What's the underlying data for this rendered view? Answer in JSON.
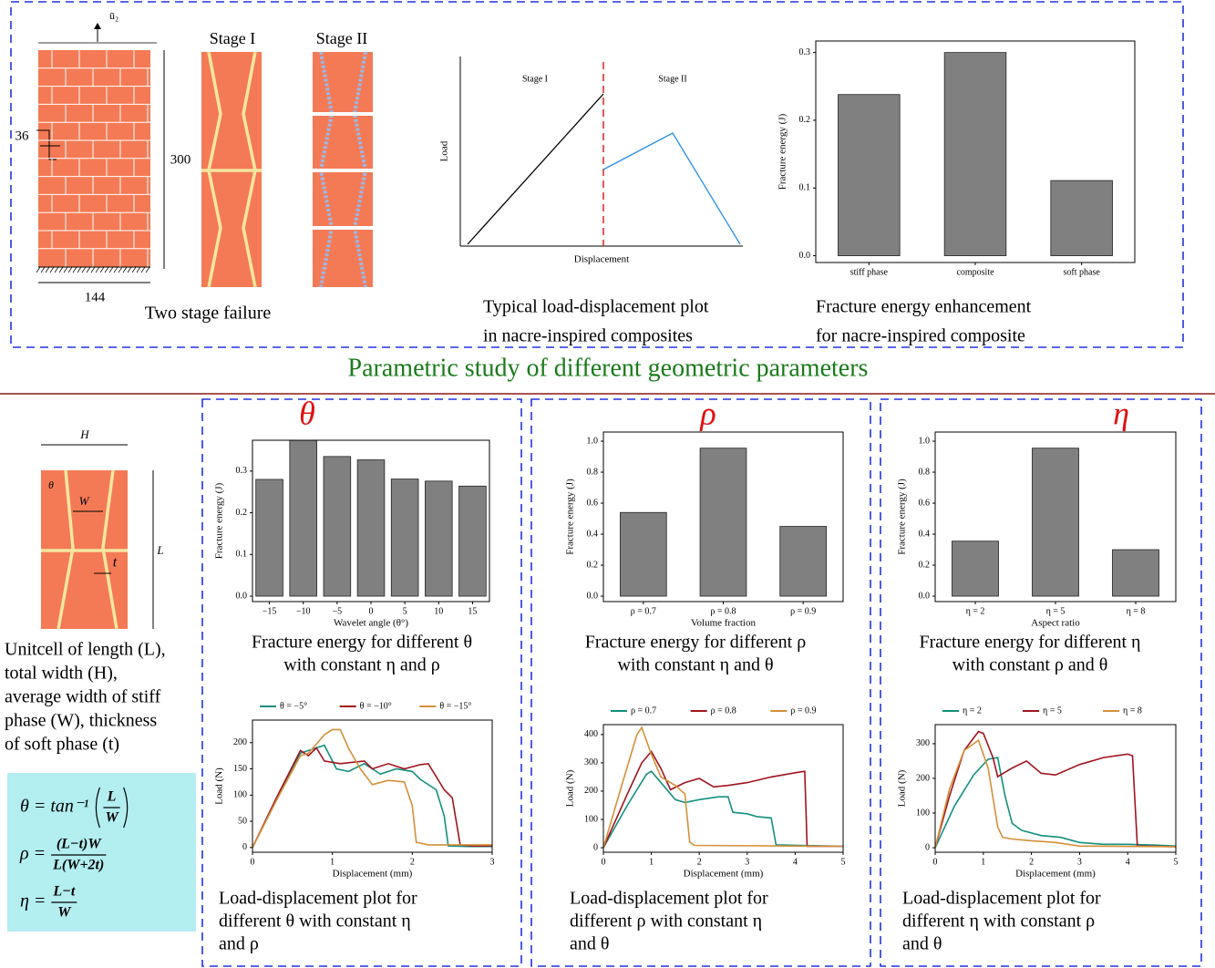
{
  "header": {
    "title": "Parametric study of different geometric parameters"
  },
  "failure": {
    "load_label": "ū₂",
    "stages": [
      "Stage I",
      "Stage II"
    ],
    "dims": {
      "brick": "36",
      "height": "300",
      "width": "144"
    },
    "caption": "Two stage failure"
  },
  "schematic": {
    "stage_labels": [
      "Stage I",
      "Stage II"
    ],
    "ylabel": "Load",
    "xlabel": "Displacement",
    "caption": [
      "Typical load-displacement plot",
      "in nacre-inspired composites"
    ]
  },
  "unitcell": {
    "labels": {
      "H": "H",
      "theta": "θ",
      "W": "W",
      "L": "L",
      "t": "t"
    },
    "caption": [
      "Unitcell of length (L),",
      "total width (H),",
      "average width of stiff",
      "phase (W), thickness",
      "of soft phase (t)"
    ],
    "formulas": [
      {
        "lhs": "θ = tan⁻¹",
        "num": "L",
        "den": "W"
      },
      {
        "lhs": "ρ =",
        "num": "(L−t)W",
        "den": "L(W+2t)"
      },
      {
        "lhs": "η =",
        "num": "L−t",
        "den": "W"
      }
    ]
  },
  "chart_data": [
    {
      "type": "bar",
      "categories": [
        "stiff phase",
        "composite",
        "soft phase"
      ],
      "values": [
        0.238,
        0.3,
        0.111
      ],
      "color": "#808080",
      "ylim": [
        -0.01,
        0.317
      ],
      "yticks": [
        {
          "value": 0,
          "label": "0.0"
        },
        0.1,
        0.2,
        0.3
      ],
      "ylabel": "Fracture energy (J)",
      "caption": [
        "Fracture energy enhancement",
        "for nacre-inspired composite"
      ]
    },
    {
      "type": "bar",
      "title": "θ",
      "categories": [
        "−15",
        "−10",
        "−5",
        "0",
        "5",
        "10",
        "15"
      ],
      "values": [
        0.28,
        0.374,
        0.335,
        0.327,
        0.281,
        0.276,
        0.264
      ],
      "color": "#808080",
      "ylim": [
        -0.013,
        0.374
      ],
      "yticks": [
        {
          "value": 0,
          "label": "0.0"
        },
        0.1,
        0.2,
        0.3
      ],
      "ylabel": "Fracture energy (J)",
      "xlabel": "Wavelet angle (θ°)",
      "caption": [
        "Fracture energy for different θ",
        "with constant η and ρ"
      ]
    },
    {
      "type": "bar",
      "title": "ρ",
      "categories": [
        "ρ = 0.7",
        "ρ = 0.8",
        "ρ = 0.9"
      ],
      "values": [
        0.54,
        0.955,
        0.45
      ],
      "color": "#808080",
      "ylim": [
        -0.035,
        1.059
      ],
      "yticks": [
        {
          "value": 0,
          "label": "0.0"
        },
        0.2,
        0.4,
        0.6,
        0.8,
        {
          "value": 1,
          "label": "1.0"
        }
      ],
      "ylabel": "Fracture energy (J)",
      "xlabel": "Volume fraction",
      "caption": [
        "Fracture energy for different ρ",
        "with constant η and θ"
      ]
    },
    {
      "type": "bar",
      "title": "η",
      "categories": [
        "η = 2",
        "η = 5",
        "η = 8"
      ],
      "values": [
        0.355,
        0.955,
        0.3
      ],
      "color": "#808080",
      "ylim": [
        -0.035,
        1.059
      ],
      "yticks": [
        {
          "value": 0,
          "label": "0.0"
        },
        0.2,
        0.4,
        0.6,
        0.8,
        {
          "value": 1,
          "label": "1.0"
        }
      ],
      "ylabel": "Fracture energy (J)",
      "xlabel": "Aspect ratio",
      "caption": [
        "Fracture energy for different η",
        "with constant ρ and θ"
      ]
    },
    {
      "type": "line",
      "xlim": [
        0,
        3
      ],
      "xticks": [
        0,
        1,
        2,
        3
      ],
      "ylim": [
        -9,
        243
      ],
      "yticks": [
        0,
        50,
        100,
        150,
        200
      ],
      "xlabel": "Displacement (mm)",
      "ylabel": "Load (N)",
      "series": [
        {
          "name": "θ = −5°",
          "color": "#14907e",
          "x": [
            0,
            0.3,
            0.6,
            0.7,
            0.9,
            1.05,
            1.2,
            1.4,
            1.6,
            1.8,
            2.0,
            2.1,
            2.3,
            2.4,
            2.45,
            2.7,
            3
          ],
          "values": [
            0,
            90,
            180,
            185,
            195,
            150,
            145,
            160,
            140,
            150,
            145,
            130,
            110,
            60,
            3,
            2,
            2
          ]
        },
        {
          "name": "θ = −10°",
          "color": "#a0141e",
          "x": [
            0,
            0.3,
            0.6,
            0.7,
            0.8,
            0.9,
            1.1,
            1.4,
            1.5,
            1.7,
            1.9,
            2.1,
            2.2,
            2.4,
            2.5,
            2.6,
            2.75,
            3
          ],
          "values": [
            0,
            95,
            185,
            175,
            190,
            165,
            160,
            165,
            150,
            160,
            150,
            158,
            160,
            110,
            95,
            5,
            3,
            3
          ]
        },
        {
          "name": "θ = −15°",
          "color": "#d4903a",
          "x": [
            0,
            0.3,
            0.6,
            0.7,
            0.9,
            1.0,
            1.1,
            1.2,
            1.35,
            1.5,
            1.7,
            1.9,
            2.0,
            2.05,
            2.2,
            3
          ],
          "values": [
            0,
            90,
            175,
            180,
            215,
            225,
            225,
            190,
            150,
            120,
            128,
            125,
            80,
            10,
            5,
            5
          ]
        }
      ],
      "caption": [
        "Load-displacement plot for",
        "different θ with constant η",
        "and ρ"
      ]
    },
    {
      "type": "line",
      "xlim": [
        0,
        5
      ],
      "xticks": [
        0,
        1,
        2,
        3,
        4,
        5
      ],
      "ylim": [
        -16,
        435
      ],
      "yticks": [
        0,
        100,
        200,
        300,
        400
      ],
      "xlabel": "Displacement (mm)",
      "ylabel": "Load (N)",
      "series": [
        {
          "name": "ρ = 0.7",
          "color": "#14907e",
          "x": [
            0,
            0.5,
            0.9,
            1.0,
            1.3,
            1.5,
            1.7,
            2.0,
            2.4,
            2.6,
            2.7,
            3.0,
            3.2,
            3.5,
            3.6,
            5
          ],
          "values": [
            0,
            150,
            260,
            270,
            210,
            170,
            160,
            170,
            180,
            180,
            125,
            120,
            110,
            105,
            10,
            5
          ]
        },
        {
          "name": "ρ = 0.8",
          "color": "#a0141e",
          "x": [
            0,
            0.5,
            0.8,
            1.0,
            1.2,
            1.4,
            1.7,
            2.0,
            2.3,
            2.6,
            3.0,
            3.5,
            4.0,
            4.2,
            4.25,
            5
          ],
          "values": [
            0,
            190,
            300,
            340,
            280,
            205,
            230,
            245,
            215,
            220,
            230,
            250,
            265,
            270,
            5,
            5
          ]
        },
        {
          "name": "ρ = 0.9",
          "color": "#d4903a",
          "x": [
            0,
            0.4,
            0.7,
            0.8,
            1.0,
            1.2,
            1.5,
            1.7,
            1.8,
            1.9,
            5
          ],
          "values": [
            0,
            230,
            400,
            425,
            330,
            250,
            220,
            190,
            20,
            8,
            5
          ]
        }
      ],
      "caption": [
        "Load-displacement plot for",
        "different ρ with constant η",
        "and θ"
      ]
    },
    {
      "type": "line",
      "xlim": [
        0,
        5
      ],
      "xticks": [
        0,
        1,
        2,
        3,
        4,
        5
      ],
      "ylim": [
        -13,
        355
      ],
      "yticks": [
        0,
        100,
        200,
        300
      ],
      "xlabel": "Displacement (mm)",
      "ylabel": "Load (N)",
      "series": [
        {
          "name": "η = 2",
          "color": "#14907e",
          "x": [
            0,
            0.4,
            0.8,
            1.1,
            1.3,
            1.45,
            1.6,
            1.8,
            2.2,
            2.6,
            3.0,
            3.5,
            4.0,
            4.5,
            5
          ],
          "values": [
            0,
            120,
            210,
            255,
            260,
            150,
            70,
            50,
            35,
            30,
            15,
            10,
            10,
            8,
            5
          ]
        },
        {
          "name": "η = 5",
          "color": "#a0141e",
          "x": [
            0,
            0.3,
            0.6,
            0.9,
            1.0,
            1.2,
            1.3,
            1.6,
            1.9,
            2.2,
            2.5,
            3.0,
            3.5,
            4.0,
            4.1,
            4.2,
            5
          ],
          "values": [
            0,
            150,
            280,
            335,
            330,
            260,
            205,
            230,
            250,
            215,
            210,
            240,
            260,
            270,
            265,
            5,
            3
          ]
        },
        {
          "name": "η = 8",
          "color": "#d4903a",
          "x": [
            0,
            0.3,
            0.6,
            0.9,
            1.1,
            1.3,
            1.4,
            1.6,
            2.0,
            2.5,
            3.0,
            5
          ],
          "values": [
            0,
            170,
            280,
            310,
            230,
            60,
            30,
            25,
            20,
            15,
            5,
            3
          ]
        }
      ],
      "caption": [
        "Load-displacement plot for",
        "different η with constant ρ",
        "and θ"
      ]
    }
  ]
}
